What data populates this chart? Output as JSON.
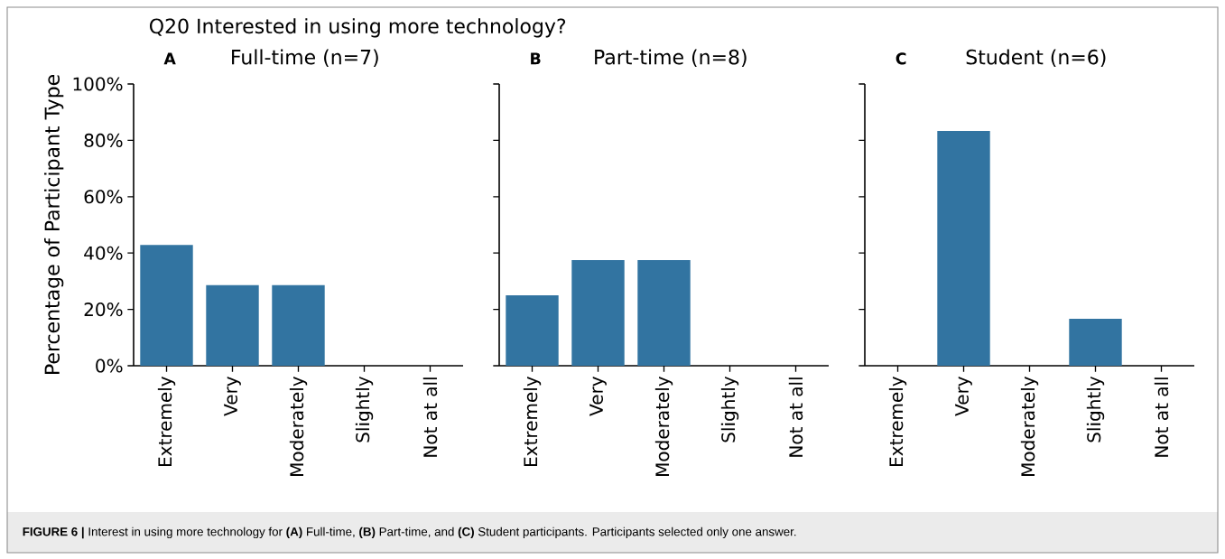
{
  "chart_data": [
    {
      "type": "bar",
      "title": "Q20 Interested in using more technology?",
      "subtitle": "Full-time (n=7)",
      "ylabel": "Percentage of Participant Type",
      "categories": [
        "Extremely",
        "Very",
        "Moderately",
        "Slightly",
        "Not at all"
      ],
      "values": [
        42.9,
        28.6,
        28.6,
        0,
        0
      ],
      "color": "#3274a1",
      "ylim": [
        0,
        100
      ],
      "yticks": [
        {
          "value": 0,
          "label": "0%"
        },
        {
          "value": 20,
          "label": "20%"
        },
        {
          "value": 40,
          "label": "40%"
        },
        {
          "value": 60,
          "label": "60%"
        },
        {
          "value": 80,
          "label": "80%"
        },
        {
          "value": 100,
          "label": "100%"
        }
      ],
      "annotations": [
        "A",
        "**FIGURE 6 |** Interest in using more technology for **(A)** Full-time, **(B)** Part-time, and **(C)** Student participants. Participants selected only one answer."
      ]
    },
    {
      "type": "bar",
      "title": "Part-time (n=8)",
      "categories": [
        "Extremely",
        "Very",
        "Moderately",
        "Slightly",
        "Not at all"
      ],
      "values": [
        25,
        37.5,
        37.5,
        0,
        0
      ],
      "color": "#3274a1",
      "ylim": [
        0,
        100
      ],
      "yticks": [
        0,
        20,
        40,
        60,
        80,
        100
      ],
      "tick_labels": "x",
      "annotations": [
        "B"
      ]
    },
    {
      "type": "bar",
      "title": "Student (n=6)",
      "categories": [
        "Extremely",
        "Very",
        "Moderately",
        "Slightly",
        "Not at all"
      ],
      "values": [
        0,
        83.3,
        0,
        16.7,
        0
      ],
      "color": "#3274a1",
      "ylim": [
        0,
        100
      ],
      "yticks": [
        0,
        20,
        40,
        60,
        80,
        100
      ],
      "tick_labels": "x",
      "annotations": [
        "C"
      ]
    }
  ]
}
